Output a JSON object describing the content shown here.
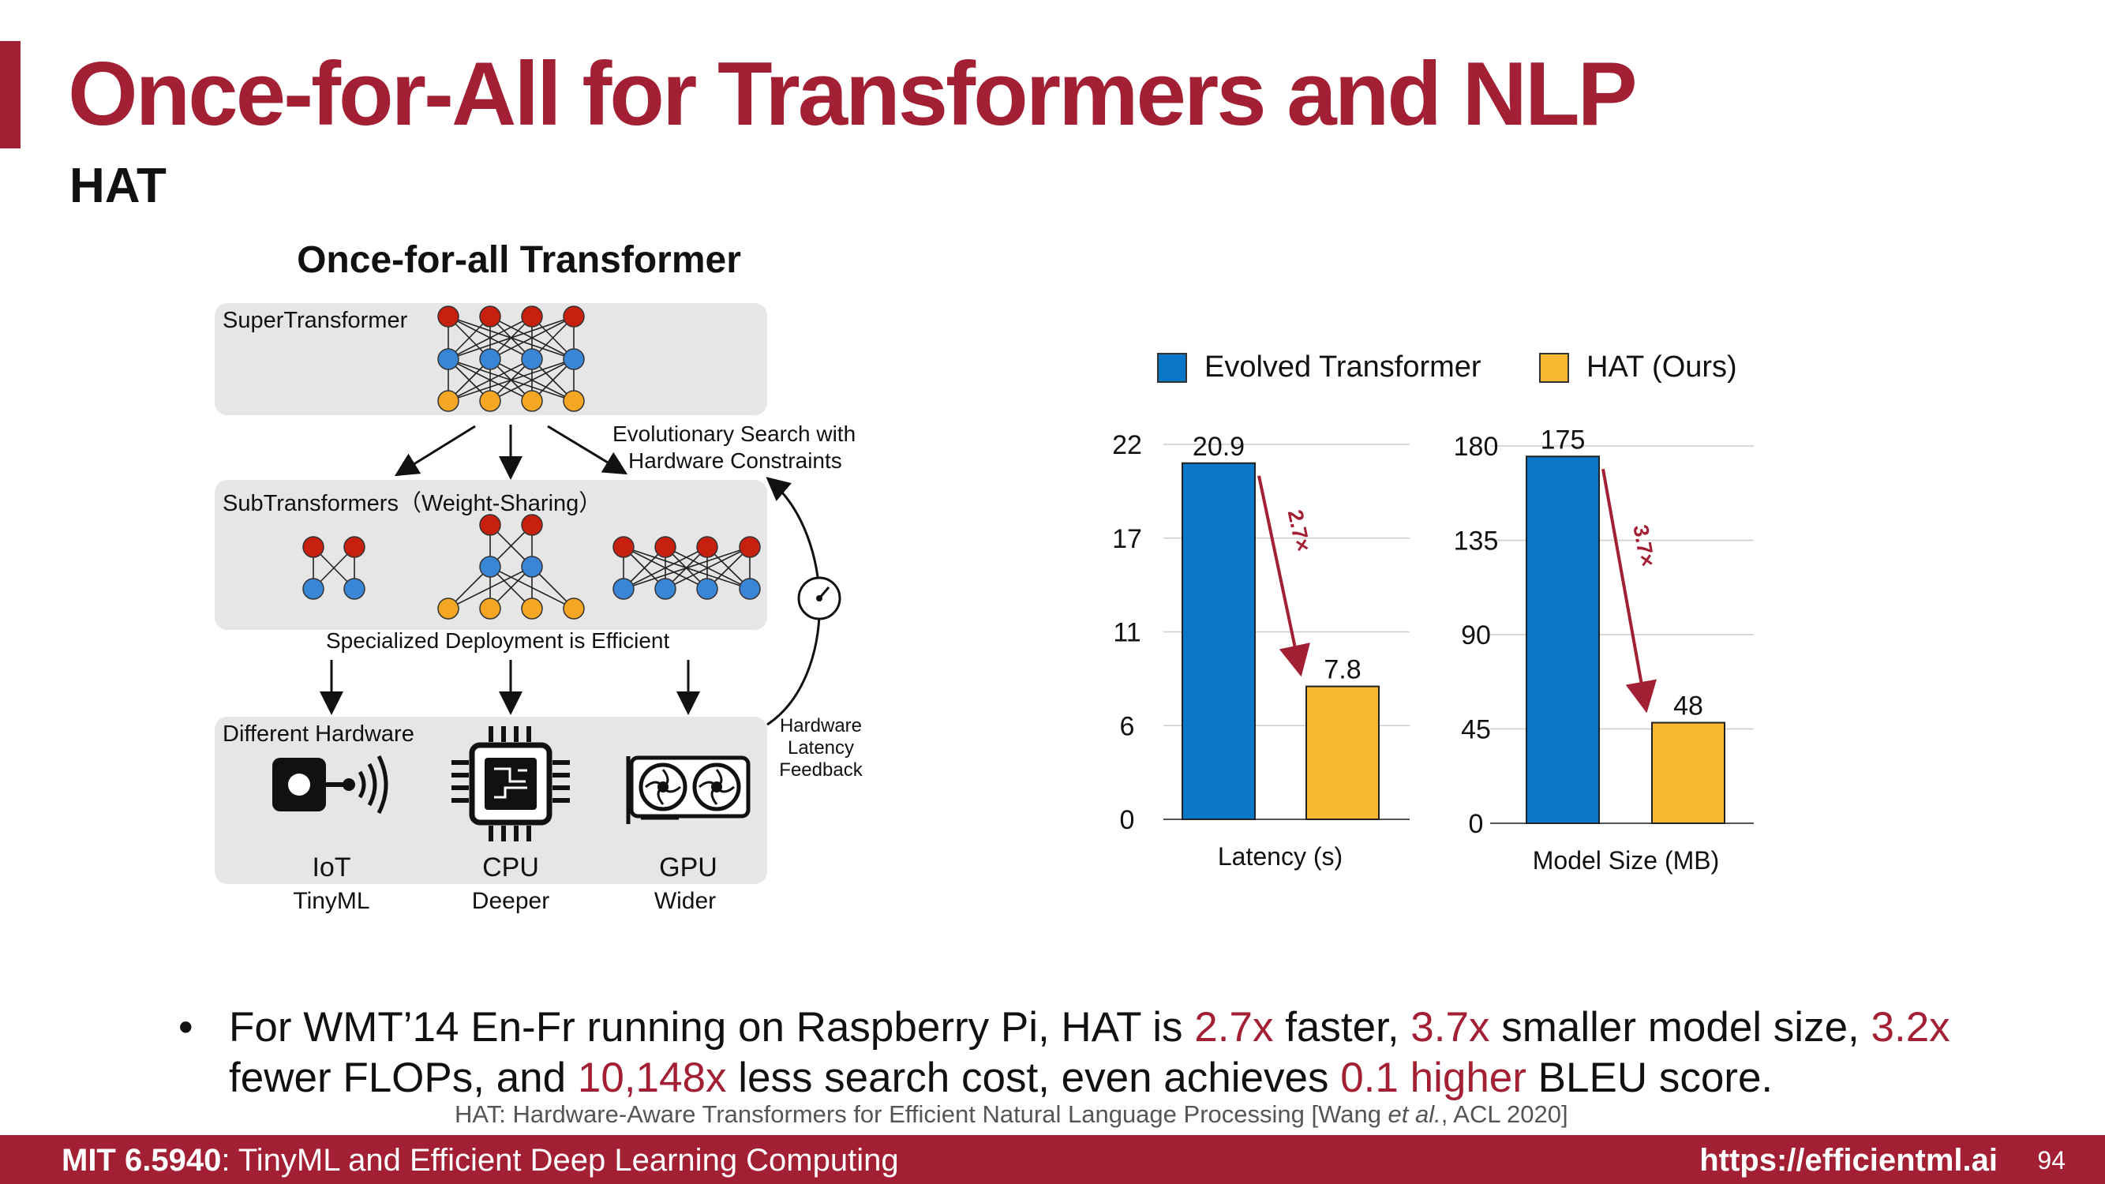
{
  "slide": {
    "title": "Once-for-All for Transformers and NLP",
    "subtitle": "HAT",
    "page_number": "94"
  },
  "diagram": {
    "heading": "Once-for-all Transformer",
    "super_label": "SuperTransformer",
    "sub_label": "SubTransformers（Weight-Sharing）",
    "search_label_1": "Evolutionary Search with",
    "search_label_2": "Hardware Constraints",
    "deploy_label": "Specialized Deployment is Efficient",
    "hw_label": "Different Hardware",
    "feedback_label_1": "Hardware",
    "feedback_label_2": "Latency",
    "feedback_label_3": "Feedback",
    "hardware": [
      {
        "name": "IoT",
        "sub": "TinyML"
      },
      {
        "name": "CPU",
        "sub": "Deeper"
      },
      {
        "name": "GPU",
        "sub": "Wider"
      }
    ],
    "colors": {
      "red": "#c8200f",
      "blue": "#3a86d6",
      "orange": "#f5a623",
      "panel": "#e6e6e6"
    }
  },
  "chart_data": [
    {
      "type": "bar",
      "categories": [
        "Evolved Transformer",
        "HAT (Ours)"
      ],
      "values": [
        20.9,
        7.8
      ],
      "value_labels": [
        "20.9",
        "7.8"
      ],
      "xlabel": "Latency (s)",
      "ylabel": "",
      "ylim": [
        0,
        22
      ],
      "yticks": [
        "22",
        "17",
        "11",
        "6",
        "0"
      ],
      "annotation": "2.7×",
      "colors": [
        "#0a76c8",
        "#f7b731"
      ],
      "grid": true
    },
    {
      "type": "bar",
      "categories": [
        "Evolved Transformer",
        "HAT (Ours)"
      ],
      "values": [
        175,
        48
      ],
      "value_labels": [
        "175",
        "48"
      ],
      "xlabel": "Model Size (MB)",
      "ylabel": "",
      "ylim": [
        0,
        180
      ],
      "yticks": [
        "180",
        "135",
        "90",
        "45",
        "0"
      ],
      "annotation": "3.7×",
      "colors": [
        "#0a76c8",
        "#f7b731"
      ],
      "grid": true
    }
  ],
  "legend": [
    {
      "label": "Evolved Transformer",
      "color": "#0a76c8"
    },
    {
      "label": "HAT (Ours)",
      "color": "#f7b731"
    }
  ],
  "bullet": {
    "t1": "For WMT’14 En-Fr running on Raspberry Pi, HAT is ",
    "h1": "2.7x",
    "t2": " faster, ",
    "h2": "3.7x",
    "t3": " smaller model size, ",
    "h3": "3.2x",
    "t4": " fewer FLOPs, and ",
    "h4": "10,148x",
    "t5": " less search cost, even achieves ",
    "h5": "0.1 higher",
    "t6": " BLEU score."
  },
  "citation": {
    "before": "HAT: Hardware-Aware Transformers for Efficient Natural Language Processing [Wang ",
    "etal": "et al.",
    "after": ", ACL 2020]"
  },
  "footer": {
    "course_code": "MIT 6.5940",
    "course_title": ": TinyML and Efficient Deep Learning Computing",
    "url": "https://efficientml.ai"
  },
  "accent_color": "#a31f34"
}
